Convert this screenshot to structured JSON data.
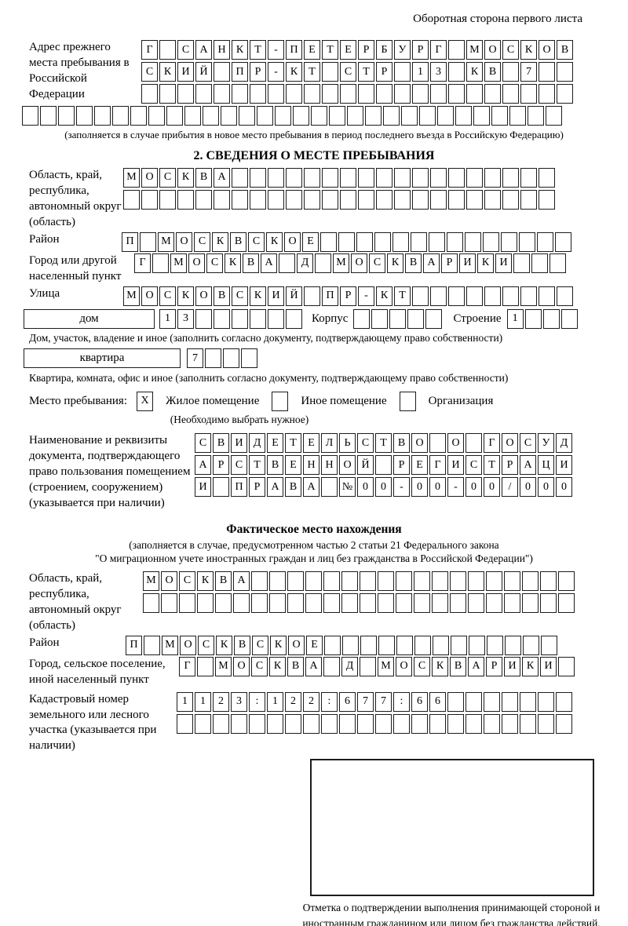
{
  "colors": {
    "ink": "#000000",
    "cell_border": "#1c1c1c"
  },
  "header": {
    "note": "Оборотная сторона первого листа"
  },
  "prev_address": {
    "label": "Адрес прежнего места пребывания в Российской Федерации",
    "rows": [
      {
        "text": "Г САНКТ-ПЕТЕРБУРГ МОСКОВ",
        "cells": 24
      },
      {
        "text": "СКИЙ ПР-КТ СТР 13 КВ 7",
        "cells": 24
      },
      {
        "text": "",
        "cells": 24
      },
      {
        "text": "",
        "cells": 30
      }
    ],
    "note": "(заполняется в случае прибытия в новое место пребывания в период последнего въезда в Российскую Федерацию)"
  },
  "section2": {
    "title": "2. СВЕДЕНИЯ О МЕСТЕ ПРЕБЫВАНИЯ",
    "region": {
      "label": "Область, край, республика, автономный округ (область)",
      "rows": [
        {
          "text": "МОСКВА",
          "cells": 24
        },
        {
          "text": "",
          "cells": 24
        }
      ]
    },
    "district": {
      "label": "Район",
      "row": {
        "text": "П МОСКВСКОЕ",
        "cells": 25
      }
    },
    "city": {
      "label": "Город или другой населенный пункт",
      "row": {
        "text": "Г МОСКВА Д МОСКВАРИКИ",
        "cells": 24
      }
    },
    "street": {
      "label": "Улица",
      "row": {
        "text": "МОСКОВСКИЙ ПР-КТ",
        "cells": 25
      }
    },
    "house": {
      "box_label": "дом",
      "row": {
        "text": "13",
        "cells": 8
      },
      "korpus_label": "Корпус",
      "korpus_row": {
        "text": "",
        "cells": 5
      },
      "stroenie_label": "Строение",
      "stroenie_row": {
        "text": "1",
        "cells": 4
      }
    },
    "house_note": "Дом, участок, владение и иное (заполнить согласно документу, подтверждающему право собственности)",
    "apartment": {
      "box_label": "квартира",
      "row": {
        "text": "7",
        "cells": 4
      }
    },
    "apartment_note": "Квартира, комната, офис и иное (заполнить согласно документу, подтверждающему право собственности)",
    "stay_type": {
      "label": "Место пребывания:",
      "options": [
        {
          "label": "Жилое помещение",
          "box": {
            "text": "X",
            "cells": 1
          }
        },
        {
          "label": "Иное помещение",
          "box": {
            "text": "",
            "cells": 1
          }
        },
        {
          "label": "Организация",
          "box": {
            "text": "",
            "cells": 1
          }
        }
      ],
      "note": "(Необходимо выбрать нужное)"
    },
    "document": {
      "label": "Наименование и реквизиты документа, подтверждающего право пользования помещением (строением, сооружением) (указывается при наличии)",
      "rows": [
        {
          "text": "СВИДЕТЕЛЬСТВО О ГОСУД",
          "cells": 21
        },
        {
          "text": "АРСТВЕННОЙ РЕГИСТРАЦИ",
          "cells": 21
        },
        {
          "text": "И ПРАВА №00-00-00/000",
          "cells": 21
        }
      ]
    }
  },
  "section3": {
    "title": "Фактическое место нахождения",
    "note1": "(заполняется в случае, предусмотренном частью 2 статьи 21 Федерального закона",
    "note2": "\"О миграционном учете иностранных граждан и лиц без гражданства в Российской Федерации\")",
    "region": {
      "label": "Область, край, республика, автономный округ (область)",
      "rows": [
        {
          "text": "МОСКВА",
          "cells": 24
        },
        {
          "text": "",
          "cells": 24
        }
      ]
    },
    "district": {
      "label": "Район",
      "row": {
        "text": "П МОСКВСКОЕ",
        "cells": 24
      }
    },
    "city": {
      "label": "Город, сельское поселение, иной населенный пункт",
      "row": {
        "text": "Г МОСКВА Д МОСКВАРИКИ",
        "cells": 22
      }
    },
    "cadastre": {
      "label": "Кадастровый номер земельного или лесного участка (указывается при наличии)",
      "rows": [
        {
          "text": "1123:122:677:66",
          "cells": 22
        },
        {
          "text": "",
          "cells": 22
        }
      ]
    },
    "stamp_note": "Отметка о подтверждении выполнения принимающей стороной и иностранным гражданином или лицом без гражданства действий, необходимых для его постановки на учет по месту пребывания"
  }
}
